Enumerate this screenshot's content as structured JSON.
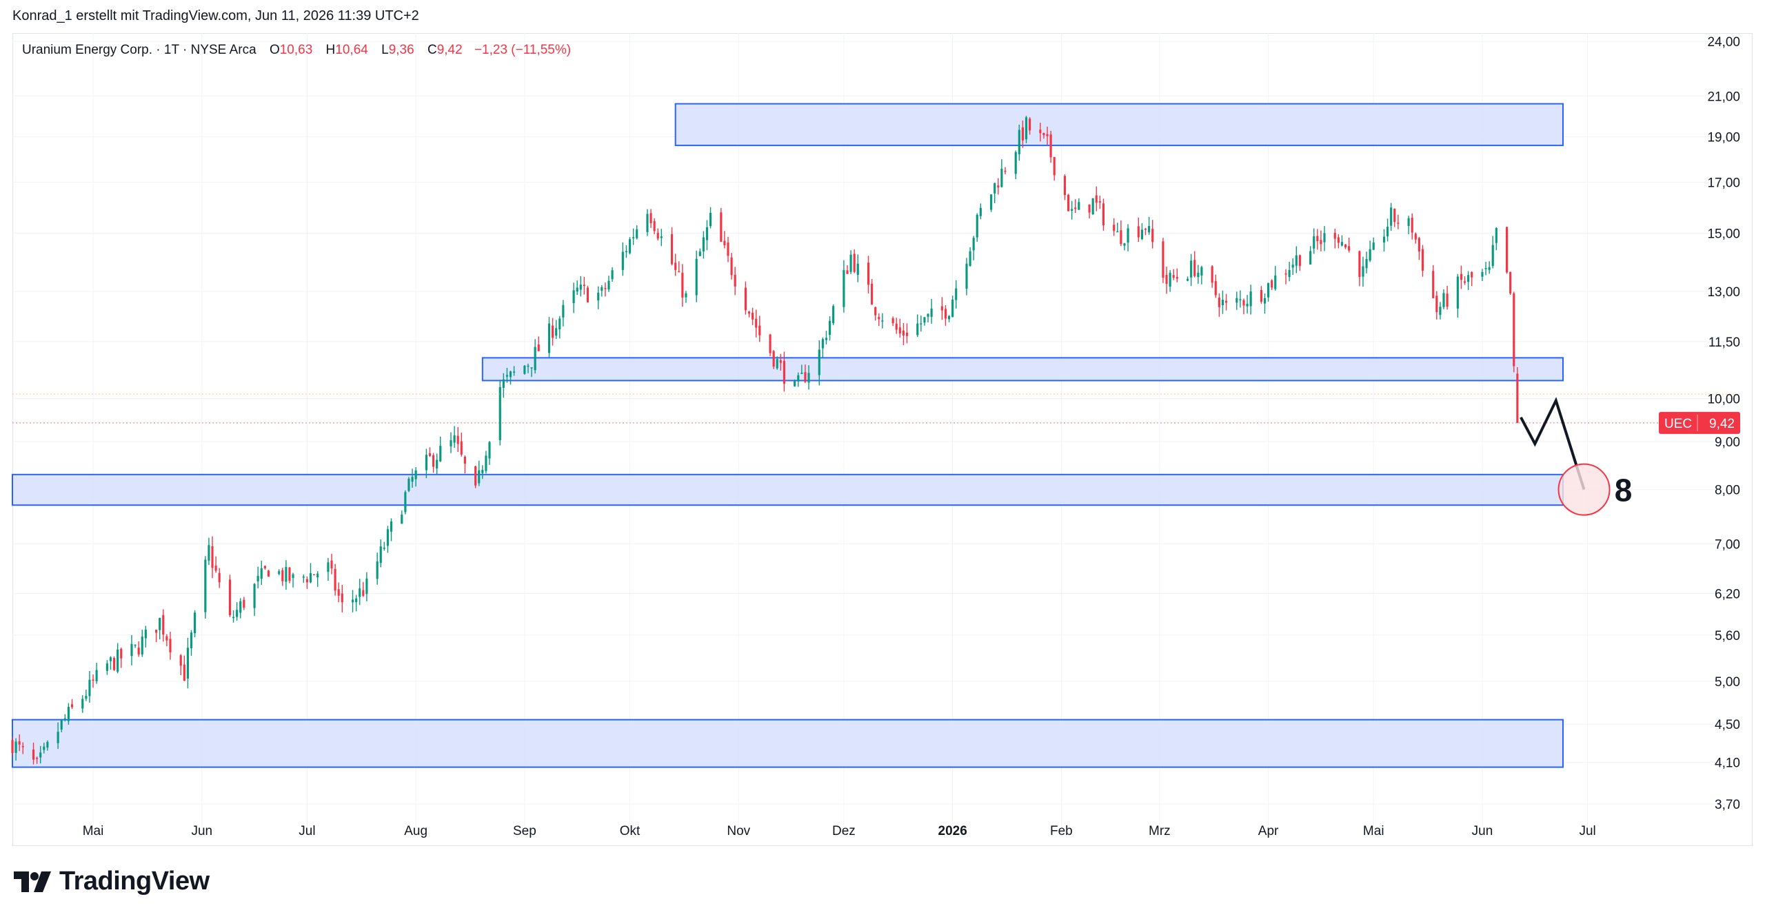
{
  "header": {
    "attribution": "Konrad_1 erstellt mit TradingView.com, Jun 11, 2026 11:39 UTC+2"
  },
  "legend": {
    "symbol": "Uranium Energy Corp. · 1T · NYSE Arca",
    "o_label": "O",
    "o_value": "10,63",
    "h_label": "H",
    "h_value": "10,64",
    "l_label": "L",
    "l_value": "9,36",
    "c_label": "C",
    "c_value": "9,42",
    "change": "−1,23 (−11,55%)"
  },
  "colors": {
    "up": "#089981",
    "down": "#f23645",
    "zone_fill": "#d6e0fd",
    "zone_stroke": "#2962ff",
    "grid": "#f0f3fa",
    "text": "#131722",
    "price_tag": "#f23645"
  },
  "chart_data": {
    "type": "candlestick",
    "symbol": "UEC",
    "scale": "log",
    "ylim": [
      3.5,
      24.5
    ],
    "x_range": [
      "2025-04-08",
      "2026-07-28"
    ],
    "y_ticks": [
      "24,00",
      "21,00",
      "19,00",
      "17,00",
      "15,00",
      "13,00",
      "11,50",
      "10,00",
      "9,00",
      "8,00",
      "7,00",
      "6,20",
      "5,60",
      "5,00",
      "4,50",
      "4,10",
      "3,70"
    ],
    "x_ticks": [
      {
        "date": "2025-05-01",
        "label": "Mai"
      },
      {
        "date": "2025-06-01",
        "label": "Jun"
      },
      {
        "date": "2025-07-01",
        "label": "Jul"
      },
      {
        "date": "2025-08-01",
        "label": "Aug"
      },
      {
        "date": "2025-09-01",
        "label": "Sep"
      },
      {
        "date": "2025-10-01",
        "label": "Okt"
      },
      {
        "date": "2025-11-01",
        "label": "Nov"
      },
      {
        "date": "2025-12-01",
        "label": "Dez"
      },
      {
        "date": "2026-01-01",
        "label": "2026"
      },
      {
        "date": "2026-02-01",
        "label": "Feb"
      },
      {
        "date": "2026-03-01",
        "label": "Mrz"
      },
      {
        "date": "2026-04-01",
        "label": "Apr"
      },
      {
        "date": "2026-05-01",
        "label": "Mai"
      },
      {
        "date": "2026-06-01",
        "label": "Jun"
      },
      {
        "date": "2026-07-01",
        "label": "Jul"
      }
    ],
    "last_price": {
      "label": "UEC",
      "value": 9.42,
      "value_text": "9,42"
    },
    "reference_price": 10.11,
    "path": [
      [
        "2025-04-08",
        4.3
      ],
      [
        "2025-04-15",
        4.05
      ],
      [
        "2025-04-22",
        4.5
      ],
      [
        "2025-05-05",
        5.2
      ],
      [
        "2025-05-13",
        5.4
      ],
      [
        "2025-05-20",
        5.8
      ],
      [
        "2025-05-27",
        5.1
      ],
      [
        "2025-06-03",
        6.9
      ],
      [
        "2025-06-09",
        5.8
      ],
      [
        "2025-06-20",
        6.6
      ],
      [
        "2025-06-27",
        6.4
      ],
      [
        "2025-07-07",
        6.6
      ],
      [
        "2025-07-11",
        6.0
      ],
      [
        "2025-07-18",
        6.3
      ],
      [
        "2025-07-31",
        8.2
      ],
      [
        "2025-08-05",
        8.6
      ],
      [
        "2025-08-12",
        9.0
      ],
      [
        "2025-08-18",
        7.9
      ],
      [
        "2025-08-25",
        10.3
      ],
      [
        "2025-09-03",
        11.0
      ],
      [
        "2025-09-16",
        13.0
      ],
      [
        "2025-09-23",
        12.9
      ],
      [
        "2025-10-06",
        16.0
      ],
      [
        "2025-10-10",
        14.8
      ],
      [
        "2025-10-17",
        12.8
      ],
      [
        "2025-10-24",
        15.5
      ],
      [
        "2025-11-07",
        11.7
      ],
      [
        "2025-11-17",
        10.2
      ],
      [
        "2025-11-24",
        11.2
      ],
      [
        "2025-12-03",
        14.2
      ],
      [
        "2025-12-10",
        12.5
      ],
      [
        "2025-12-17",
        11.7
      ],
      [
        "2025-12-31",
        12.5
      ],
      [
        "2026-01-09",
        15.8
      ],
      [
        "2026-01-22",
        19.5
      ],
      [
        "2026-01-28",
        18.6
      ],
      [
        "2026-02-04",
        15.7
      ],
      [
        "2026-02-10",
        16.2
      ],
      [
        "2026-02-17",
        14.9
      ],
      [
        "2026-02-25",
        15.3
      ],
      [
        "2026-03-03",
        13.3
      ],
      [
        "2026-03-11",
        13.8
      ],
      [
        "2026-03-20",
        12.5
      ],
      [
        "2026-03-30",
        13.0
      ],
      [
        "2026-04-10",
        14.2
      ],
      [
        "2026-04-20",
        15.1
      ],
      [
        "2026-04-28",
        13.6
      ],
      [
        "2026-05-06",
        15.6
      ],
      [
        "2026-05-12",
        15.2
      ],
      [
        "2026-05-19",
        12.4
      ],
      [
        "2026-05-26",
        13.3
      ],
      [
        "2026-06-03",
        13.6
      ],
      [
        "2026-06-05",
        15.0
      ],
      [
        "2026-06-09",
        12.9
      ],
      [
        "2026-06-10",
        10.63
      ],
      [
        "2026-06-11",
        9.42
      ]
    ],
    "zones": [
      {
        "from": "2025-10-14",
        "to": "2026-06-24",
        "low": 18.6,
        "high": 20.6
      },
      {
        "from": "2025-08-20",
        "to": "2026-06-24",
        "low": 10.45,
        "high": 11.05
      },
      {
        "from": "2025-04-08",
        "to": "2026-06-24",
        "low": 7.7,
        "high": 8.3
      },
      {
        "from": "2025-04-08",
        "to": "2026-06-24",
        "low": 4.05,
        "high": 4.55
      }
    ],
    "projection": [
      [
        "2026-06-12",
        9.55
      ],
      [
        "2026-06-16",
        8.95
      ],
      [
        "2026-06-22",
        9.95
      ],
      [
        "2026-06-30",
        8.0
      ]
    ],
    "target": {
      "date": "2026-06-30",
      "value": 8.0,
      "label": "8"
    }
  }
}
